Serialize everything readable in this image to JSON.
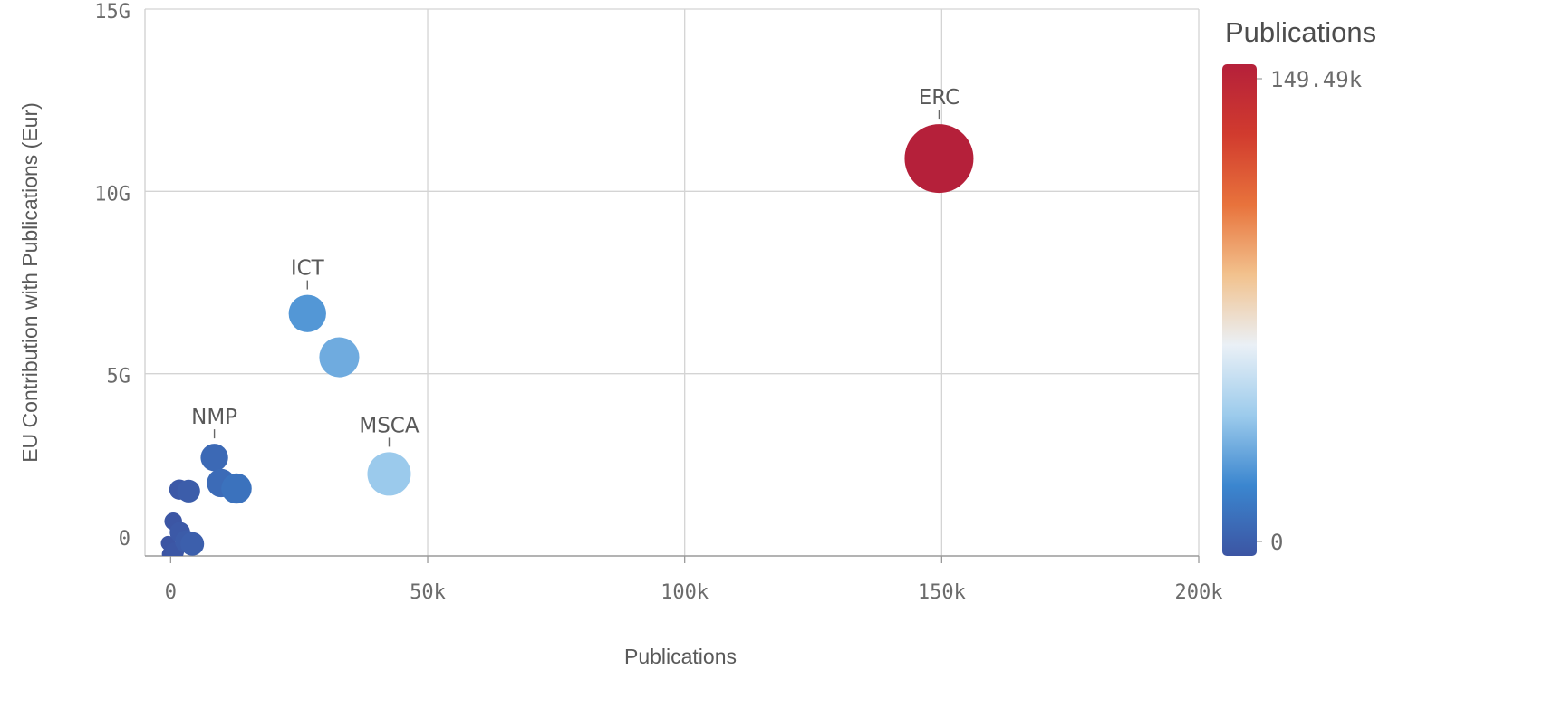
{
  "chart_data": {
    "type": "scatter",
    "xlabel": "Publications",
    "ylabel": "EU Contribution with Publications (Eur)",
    "xlim": [
      -5000,
      200000
    ],
    "ylim": [
      0,
      15000000000
    ],
    "x_ticks": [
      {
        "value": 0,
        "label": "0"
      },
      {
        "value": 50000,
        "label": "50k"
      },
      {
        "value": 100000,
        "label": "100k"
      },
      {
        "value": 150000,
        "label": "150k"
      },
      {
        "value": 200000,
        "label": "200k"
      }
    ],
    "y_ticks": [
      {
        "value": 0,
        "label": "0"
      },
      {
        "value": 5000000000,
        "label": "5G"
      },
      {
        "value": 10000000000,
        "label": "10G"
      },
      {
        "value": 15000000000,
        "label": "15G"
      }
    ],
    "grid": true,
    "color_scale": {
      "title": "Publications",
      "min": 0,
      "max": 149490,
      "min_label": "0",
      "max_label": "149.49k",
      "colors": [
        "#3c55a3",
        "#3b86cf",
        "#9ccbec",
        "#eaf0f6",
        "#f2c28e",
        "#e8733c",
        "#d13b2e",
        "#b5203a"
      ],
      "position": "right"
    },
    "points": [
      {
        "name": "ERC",
        "x": 149490,
        "y": 10900000000,
        "label": "ERC"
      },
      {
        "name": "ICT",
        "x": 26600,
        "y": 6650000000,
        "label": "ICT"
      },
      {
        "name": "",
        "x": 32800,
        "y": 5450000000,
        "label": ""
      },
      {
        "name": "MSCA",
        "x": 42500,
        "y": 2250000000,
        "label": "MSCA"
      },
      {
        "name": "NMP",
        "x": 8500,
        "y": 2700000000,
        "label": "NMP"
      },
      {
        "name": "",
        "x": 9800,
        "y": 2000000000,
        "label": ""
      },
      {
        "name": "",
        "x": 12800,
        "y": 1850000000,
        "label": ""
      },
      {
        "name": "",
        "x": 1700,
        "y": 1820000000,
        "label": ""
      },
      {
        "name": "",
        "x": 3500,
        "y": 1780000000,
        "label": ""
      },
      {
        "name": "",
        "x": 500,
        "y": 950000000,
        "label": ""
      },
      {
        "name": "",
        "x": 1800,
        "y": 650000000,
        "label": ""
      },
      {
        "name": "",
        "x": 3000,
        "y": 400000000,
        "label": ""
      },
      {
        "name": "",
        "x": 4200,
        "y": 330000000,
        "label": ""
      },
      {
        "name": "",
        "x": -500,
        "y": 350000000,
        "label": ""
      },
      {
        "name": "",
        "x": 800,
        "y": 120000000,
        "label": ""
      },
      {
        "name": "",
        "x": -300,
        "y": 50000000,
        "label": ""
      }
    ]
  }
}
